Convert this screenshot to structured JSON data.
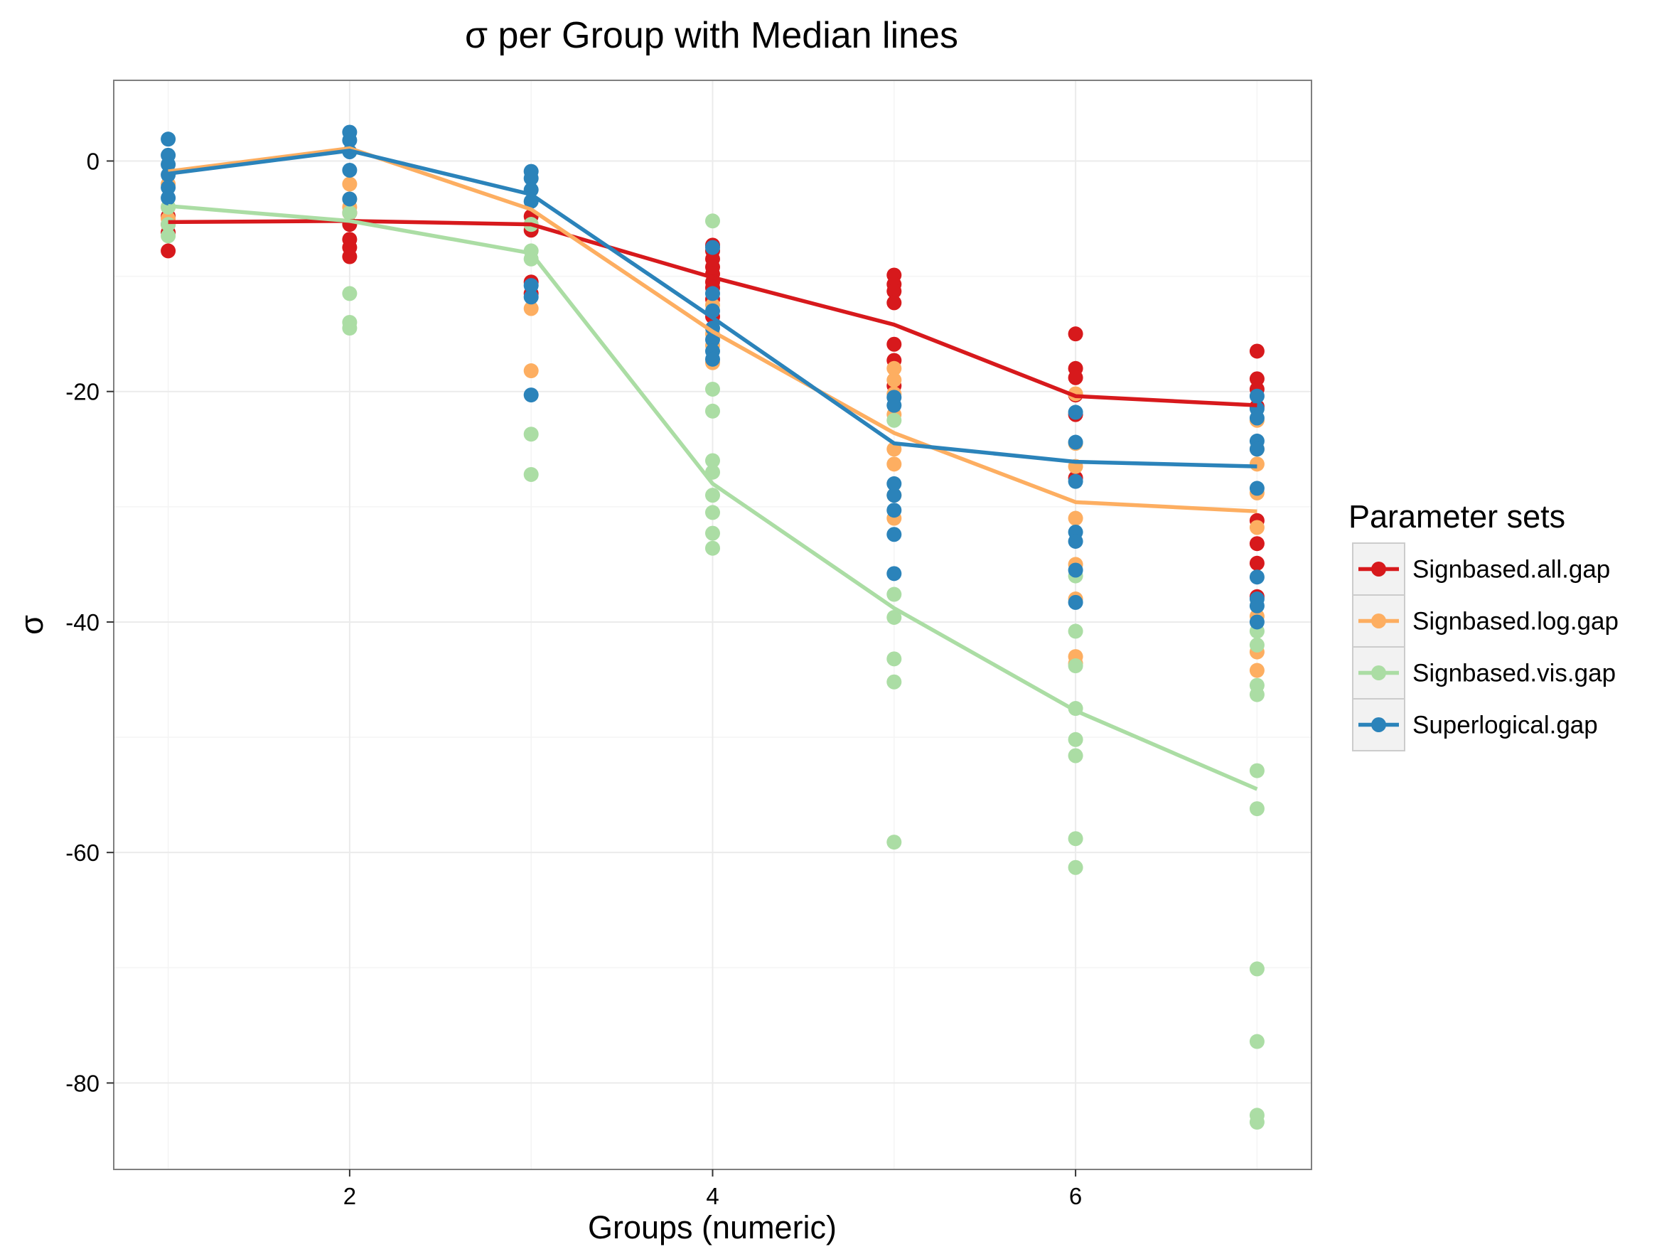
{
  "chart_data": {
    "type": "line",
    "title": "σ per Group with Median lines",
    "xlabel": "Groups (numeric)",
    "ylabel": "σ",
    "xlim": [
      0.7,
      7.3
    ],
    "ylim": [
      -87.5,
      7
    ],
    "x_ticks": [
      2,
      4,
      6
    ],
    "x_tick_labels": [
      "2",
      "4",
      "6"
    ],
    "y_ticks": [
      0,
      -20,
      -40,
      -60,
      -80
    ],
    "y_tick_labels": [
      "0",
      "-20",
      "-40",
      "-60",
      "-80"
    ],
    "grid": true,
    "legend": {
      "title": "Parameter sets",
      "position": "right"
    },
    "series": [
      {
        "name": "Signbased.all.gap",
        "color": "#d7191c",
        "median_line": {
          "x": [
            1,
            2,
            3,
            4,
            5,
            6,
            7
          ],
          "y": [
            -5.3,
            -5.2,
            -5.5,
            -10.1,
            -14.2,
            -20.4,
            -21.2
          ]
        },
        "points": [
          [
            1,
            -7.8
          ],
          [
            1,
            -6.2
          ],
          [
            1,
            -5.5
          ],
          [
            1,
            -4.8
          ],
          [
            2,
            -8.3
          ],
          [
            2,
            -7.5
          ],
          [
            2,
            -6.8
          ],
          [
            2,
            -5.5
          ],
          [
            2,
            -4.5
          ],
          [
            3,
            -11.5
          ],
          [
            3,
            -10.5
          ],
          [
            3,
            -6.0
          ],
          [
            3,
            -4.8
          ],
          [
            4,
            -7.3
          ],
          [
            4,
            -7.8
          ],
          [
            4,
            -8.5
          ],
          [
            4,
            -9.2
          ],
          [
            4,
            -9.8
          ],
          [
            4,
            -10.5
          ],
          [
            4,
            -11.0
          ],
          [
            4,
            -12.0
          ],
          [
            4,
            -13.5
          ],
          [
            5,
            -9.9
          ],
          [
            5,
            -10.7
          ],
          [
            5,
            -11.3
          ],
          [
            5,
            -12.3
          ],
          [
            5,
            -15.9
          ],
          [
            5,
            -17.3
          ],
          [
            5,
            -19.5
          ],
          [
            6,
            -15.0
          ],
          [
            6,
            -18.0
          ],
          [
            6,
            -18.8
          ],
          [
            6,
            -20.3
          ],
          [
            6,
            -22.0
          ],
          [
            6,
            -27.5
          ],
          [
            7,
            -16.5
          ],
          [
            7,
            -18.9
          ],
          [
            7,
            -19.8
          ],
          [
            7,
            -21.3
          ],
          [
            7,
            -31.2
          ],
          [
            7,
            -33.2
          ],
          [
            7,
            -34.9
          ],
          [
            7,
            -37.8
          ]
        ]
      },
      {
        "name": "Signbased.log.gap",
        "color": "#fdae61",
        "median_line": {
          "x": [
            1,
            2,
            3,
            4,
            5,
            6,
            7
          ],
          "y": [
            -0.9,
            1.1,
            -4.2,
            -14.8,
            -23.6,
            -29.6,
            -30.4
          ]
        },
        "points": [
          [
            1,
            -2.0
          ],
          [
            1,
            -4.0
          ],
          [
            1,
            -5.0
          ],
          [
            2,
            -2.0
          ],
          [
            2,
            -3.3
          ],
          [
            2,
            -4.0
          ],
          [
            3,
            -5.5
          ],
          [
            3,
            -12.8
          ],
          [
            3,
            -18.2
          ],
          [
            4,
            -12.5
          ],
          [
            4,
            -15.0
          ],
          [
            4,
            -16.0
          ],
          [
            4,
            -17.5
          ],
          [
            5,
            -18.0
          ],
          [
            5,
            -19.0
          ],
          [
            5,
            -20.2
          ],
          [
            5,
            -22.0
          ],
          [
            5,
            -25.0
          ],
          [
            5,
            -26.3
          ],
          [
            5,
            -29.0
          ],
          [
            5,
            -31.0
          ],
          [
            6,
            -20.2
          ],
          [
            6,
            -24.5
          ],
          [
            6,
            -26.5
          ],
          [
            6,
            -31.0
          ],
          [
            6,
            -35.0
          ],
          [
            6,
            -38.0
          ],
          [
            6,
            -43.0
          ],
          [
            6,
            -43.6
          ],
          [
            7,
            -22.5
          ],
          [
            7,
            -25.0
          ],
          [
            7,
            -26.3
          ],
          [
            7,
            -28.8
          ],
          [
            7,
            -31.8
          ],
          [
            7,
            -39.5
          ],
          [
            7,
            -42.6
          ],
          [
            7,
            -44.2
          ]
        ]
      },
      {
        "name": "Signbased.vis.gap",
        "color": "#abdda4",
        "median_line": {
          "x": [
            1,
            2,
            3,
            4,
            5,
            6,
            7
          ],
          "y": [
            -3.9,
            -5.2,
            -8.0,
            -28.0,
            -38.8,
            -47.7,
            -54.5
          ]
        },
        "points": [
          [
            1,
            -4.0
          ],
          [
            1,
            -5.5
          ],
          [
            1,
            -6.5
          ],
          [
            2,
            -4.5
          ],
          [
            2,
            -11.5
          ],
          [
            2,
            -14.0
          ],
          [
            2,
            -14.5
          ],
          [
            3,
            -5.5
          ],
          [
            3,
            -7.8
          ],
          [
            3,
            -8.5
          ],
          [
            3,
            -23.7
          ],
          [
            3,
            -27.2
          ],
          [
            4,
            -5.2
          ],
          [
            4,
            -19.8
          ],
          [
            4,
            -21.7
          ],
          [
            4,
            -26.0
          ],
          [
            4,
            -27.0
          ],
          [
            4,
            -29.0
          ],
          [
            4,
            -30.5
          ],
          [
            4,
            -32.3
          ],
          [
            4,
            -33.6
          ],
          [
            5,
            -22.5
          ],
          [
            5,
            -37.6
          ],
          [
            5,
            -39.6
          ],
          [
            5,
            -43.2
          ],
          [
            5,
            -45.2
          ],
          [
            5,
            -59.1
          ],
          [
            6,
            -36.0
          ],
          [
            6,
            -40.8
          ],
          [
            6,
            -43.8
          ],
          [
            6,
            -47.5
          ],
          [
            6,
            -50.2
          ],
          [
            6,
            -51.6
          ],
          [
            6,
            -58.8
          ],
          [
            6,
            -61.3
          ],
          [
            7,
            -40.8
          ],
          [
            7,
            -42.0
          ],
          [
            7,
            -45.5
          ],
          [
            7,
            -46.3
          ],
          [
            7,
            -52.9
          ],
          [
            7,
            -56.2
          ],
          [
            7,
            -70.1
          ],
          [
            7,
            -76.4
          ],
          [
            7,
            -82.8
          ],
          [
            7,
            -83.4
          ]
        ]
      },
      {
        "name": "Superlogical.gap",
        "color": "#2b83ba",
        "median_line": {
          "x": [
            1,
            2,
            3,
            4,
            5,
            6,
            7
          ],
          "y": [
            -1.1,
            0.9,
            -2.9,
            -13.6,
            -24.5,
            -26.1,
            -26.5
          ]
        },
        "points": [
          [
            1,
            1.9
          ],
          [
            1,
            0.5
          ],
          [
            1,
            -0.3
          ],
          [
            1,
            -1.2
          ],
          [
            1,
            -2.3
          ],
          [
            1,
            -3.2
          ],
          [
            2,
            2.5
          ],
          [
            2,
            1.8
          ],
          [
            2,
            0.8
          ],
          [
            2,
            -0.8
          ],
          [
            2,
            -3.3
          ],
          [
            3,
            -0.9
          ],
          [
            3,
            -1.5
          ],
          [
            3,
            -2.5
          ],
          [
            3,
            -3.5
          ],
          [
            3,
            -10.8
          ],
          [
            3,
            -11.8
          ],
          [
            3,
            -20.3
          ],
          [
            4,
            -7.5
          ],
          [
            4,
            -11.5
          ],
          [
            4,
            -13.0
          ],
          [
            4,
            -14.5
          ],
          [
            4,
            -15.5
          ],
          [
            4,
            -16.5
          ],
          [
            4,
            -17.2
          ],
          [
            5,
            -20.5
          ],
          [
            5,
            -21.2
          ],
          [
            5,
            -28.0
          ],
          [
            5,
            -29.0
          ],
          [
            5,
            -30.3
          ],
          [
            5,
            -32.4
          ],
          [
            5,
            -35.8
          ],
          [
            6,
            -21.8
          ],
          [
            6,
            -24.4
          ],
          [
            6,
            -27.8
          ],
          [
            6,
            -32.2
          ],
          [
            6,
            -33.0
          ],
          [
            6,
            -35.5
          ],
          [
            6,
            -38.3
          ],
          [
            7,
            -20.4
          ],
          [
            7,
            -21.5
          ],
          [
            7,
            -22.3
          ],
          [
            7,
            -24.3
          ],
          [
            7,
            -25.0
          ],
          [
            7,
            -28.4
          ],
          [
            7,
            -36.1
          ],
          [
            7,
            -38.0
          ],
          [
            7,
            -38.6
          ],
          [
            7,
            -40.0
          ]
        ]
      }
    ]
  }
}
